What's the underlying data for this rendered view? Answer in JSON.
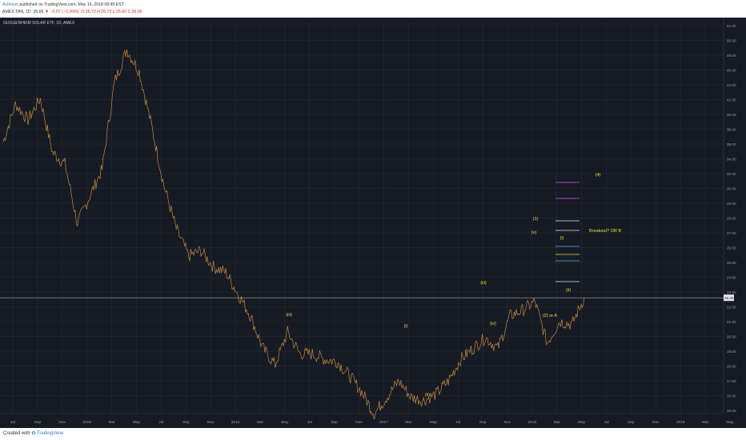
{
  "header": {
    "publisher": "Actinium",
    "published_text": "published on TradingView.com, May 16, 2018 08:45 EST",
    "ticker": "AMEX:TAN, 1D",
    "last": "26.66",
    "change": "▼ −0.07 (−0.26%)",
    "ohlc": "O:26.73  H:26.73  L:26.60  C:26.66"
  },
  "chart_title": "GUGGENHEIM SOLAR ETF, 1D, AMEX",
  "footer": {
    "created_with": "Created with",
    "brand": "TradingView"
  },
  "colors": {
    "background": "#161a25",
    "price_line": "#c48a3a",
    "annotation": "#e8e337",
    "target_line": "#b13bd0",
    "grid": "#2a2e39"
  },
  "chart_data": {
    "type": "line",
    "x": [
      "2014-06",
      "2014-07",
      "2014-08",
      "2014-09",
      "2014-10",
      "2014-11",
      "2014-12",
      "2015-01",
      "2015-02",
      "2015-03",
      "2015-04",
      "2015-05",
      "2015-06",
      "2015-07",
      "2015-08",
      "2015-09",
      "2015-10",
      "2015-11",
      "2015-12",
      "2016-01",
      "2016-02",
      "2016-03",
      "2016-04",
      "2016-05",
      "2016-06",
      "2016-07",
      "2016-08",
      "2016-09",
      "2016-10",
      "2016-11",
      "2016-12",
      "2017-01",
      "2017-02",
      "2017-03",
      "2017-04",
      "2017-05",
      "2017-06",
      "2017-07",
      "2017-08",
      "2017-09",
      "2017-10",
      "2017-11",
      "2017-12",
      "2018-01",
      "2018-02",
      "2018-03",
      "2018-04",
      "2018-05"
    ],
    "series": [
      {
        "values": [
          41.0,
          44.5,
          43.0,
          45.0,
          40.0,
          39.0,
          33.5,
          36.0,
          38.5,
          46.5,
          49.5,
          47.5,
          42.5,
          37.0,
          33.0,
          30.5,
          31.0,
          29.5,
          29.0,
          27.0,
          25.0,
          22.0,
          20.5,
          23.5,
          21.5,
          21.5,
          21.0,
          20.8,
          19.5,
          18.0,
          16.0,
          17.5,
          19.0,
          17.5,
          17.2,
          17.8,
          19.0,
          21.0,
          22.0,
          23.0,
          22.0,
          25.0,
          25.5,
          26.3,
          22.5,
          24.5,
          24.2,
          26.7
        ]
      }
    ],
    "ylim": [
      16.0,
      52.0
    ],
    "yticks": [
      "52.00",
      "50.00",
      "48.00",
      "46.00",
      "44.00",
      "42.00",
      "40.00",
      "38.00",
      "36.00",
      "34.00",
      "32.00",
      "30.50",
      "29.50",
      "28.50",
      "27.50",
      "26.50",
      "25.50",
      "24.50",
      "23.50",
      "22.50",
      "21.50",
      "20.50",
      "19.50",
      "18.50",
      "17.50",
      "16.50",
      "16.00"
    ],
    "xticks": [
      "Jul",
      "Sep",
      "Nov",
      "2015",
      "Mar",
      "May",
      "Jul",
      "Sep",
      "Nov",
      "2016",
      "Mar",
      "May",
      "Jul",
      "Sep",
      "Nov",
      "2017",
      "Mar",
      "May",
      "Jul",
      "Sep",
      "Nov",
      "2018",
      "Mar",
      "May",
      "Jul",
      "Sep",
      "Nov",
      "2019",
      "Mar",
      "May"
    ],
    "last_price_label": "26.66",
    "annotations": [
      "(4)",
      "(1)",
      "(v)",
      "(i)",
      "(iii)",
      "(iv)",
      "(2) or A",
      "(ii)",
      "Breakout? OR B",
      "(i)",
      "(ii)",
      "(iii)"
    ],
    "grid": true
  }
}
